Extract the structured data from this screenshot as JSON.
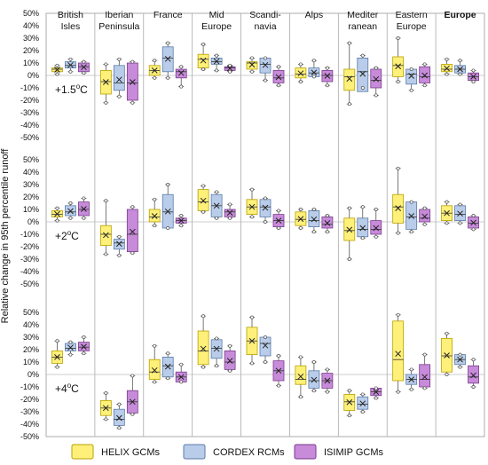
{
  "chart_data": {
    "type": "box",
    "ylabel": "Relative change in 95th percentile runoff",
    "y_ticks": [
      "50%",
      "40%",
      "30%",
      "20%",
      "10%",
      "0%",
      "-10%",
      "-20%",
      "-30%",
      "-40%",
      "-50%"
    ],
    "ylim": [
      -50,
      50
    ],
    "regions": [
      {
        "lines": [
          "British",
          "Isles"
        ],
        "bold": false
      },
      {
        "lines": [
          "Iberian",
          "Peninsula"
        ],
        "bold": false
      },
      {
        "lines": [
          "France"
        ],
        "bold": false
      },
      {
        "lines": [
          "Mid",
          "Europe"
        ],
        "bold": false
      },
      {
        "lines": [
          "Scandi-",
          "navia"
        ],
        "bold": false
      },
      {
        "lines": [
          "Alps"
        ],
        "bold": false
      },
      {
        "lines": [
          "Mediter",
          "ranean"
        ],
        "bold": false
      },
      {
        "lines": [
          "Eastern",
          "Europe"
        ],
        "bold": false
      },
      {
        "lines": [
          "Europe"
        ],
        "bold": true
      }
    ],
    "series": [
      {
        "name": "HELIX GCMs",
        "color": "#FFF07A",
        "stroke": "#B8A200"
      },
      {
        "name": "CORDEX RCMs",
        "color": "#B9CDEA",
        "stroke": "#5A7BA8"
      },
      {
        "name": "ISIMIP GCMs",
        "color": "#C78BD9",
        "stroke": "#7A3A8E"
      }
    ],
    "panels": [
      {
        "label_prefix": "+1.5",
        "label_sup": "o",
        "label_suffix": "C",
        "boxes": [
          [
            [
              1,
              3,
              5,
              6,
              8
            ],
            [
              3,
              6,
              8,
              11,
              13
            ],
            [
              2,
              3,
              7,
              10,
              11
            ]
          ],
          [
            [
              -22,
              -15,
              -5,
              4,
              9
            ],
            [
              -17,
              -12,
              -6,
              8,
              13
            ],
            [
              -22,
              -20,
              -6,
              10,
              11
            ]
          ],
          [
            [
              -2,
              0,
              4,
              8,
              12
            ],
            [
              -2,
              3,
              14,
              23,
              26
            ],
            [
              -9,
              -2,
              3,
              5,
              7
            ]
          ],
          [
            [
              5,
              6,
              13,
              17,
              25
            ],
            [
              4,
              9,
              11,
              14,
              16
            ],
            [
              3,
              4,
              6,
              7,
              8
            ]
          ],
          [
            [
              3,
              5,
              10,
              11,
              14
            ],
            [
              -4,
              2,
              9,
              14,
              14
            ],
            [
              -8,
              -6,
              -2,
              4,
              7
            ]
          ],
          [
            [
              -5,
              -2,
              1,
              6,
              9
            ],
            [
              -1,
              -1,
              2,
              6,
              12
            ],
            [
              -8,
              -5,
              0,
              4,
              6
            ]
          ],
          [
            [
              -23,
              -12,
              -1,
              5,
              26
            ],
            [
              -10,
              -13,
              3,
              14,
              16
            ],
            [
              -16,
              -10,
              -4,
              5,
              6
            ]
          ],
          [
            [
              -5,
              -1,
              8,
              15,
              30
            ],
            [
              -12,
              -7,
              1,
              5,
              5
            ],
            [
              -8,
              -6,
              -1,
              7,
              9
            ]
          ],
          [
            [
              1,
              3,
              5,
              9,
              13
            ],
            [
              1,
              2,
              5,
              8,
              12
            ],
            [
              -5,
              -4,
              -1,
              2,
              4
            ]
          ]
        ]
      },
      {
        "label_prefix": "+2",
        "label_sup": "o",
        "label_suffix": "C",
        "boxes": [
          [
            [
              1,
              4,
              6,
              9,
              11
            ],
            [
              3,
              5,
              8,
              13,
              15
            ],
            [
              3,
              5,
              10,
              16,
              19
            ]
          ],
          [
            [
              -26,
              -19,
              -10,
              -3,
              17
            ],
            [
              -27,
              -22,
              -17,
              -14,
              -12
            ],
            [
              -25,
              -24,
              -10,
              10,
              12
            ]
          ],
          [
            [
              -3,
              0,
              4,
              10,
              18
            ],
            [
              -5,
              -5,
              8,
              22,
              30
            ],
            [
              -3,
              -1,
              1,
              3,
              5
            ]
          ],
          [
            [
              8,
              9,
              16,
              26,
              29
            ],
            [
              3,
              4,
              13,
              22,
              24
            ],
            [
              3,
              4,
              8,
              10,
              14
            ]
          ],
          [
            [
              4,
              6,
              12,
              18,
              26
            ],
            [
              0,
              4,
              12,
              18,
              19
            ],
            [
              -5,
              -4,
              1,
              6,
              9
            ]
          ],
          [
            [
              -5,
              -3,
              2,
              8,
              10
            ],
            [
              -8,
              -4,
              1,
              9,
              10
            ],
            [
              -8,
              -5,
              -2,
              4,
              5
            ]
          ],
          [
            [
              -30,
              -15,
              -7,
              3,
              11
            ],
            [
              -13,
              -12,
              -6,
              3,
              12
            ],
            [
              -12,
              -10,
              -6,
              1,
              10
            ]
          ],
          [
            [
              -9,
              -1,
              12,
              22,
              43
            ],
            [
              -8,
              -6,
              4,
              16,
              16
            ],
            [
              -2,
              0,
              3,
              10,
              11
            ]
          ],
          [
            [
              -1,
              1,
              7,
              13,
              16
            ],
            [
              -1,
              1,
              6,
              13,
              14
            ],
            [
              -6,
              -5,
              -1,
              4,
              5
            ]
          ]
        ]
      },
      {
        "label_prefix": "+4",
        "label_sup": "o",
        "label_suffix": "C",
        "boxes": [
          [
            [
              6,
              9,
              14,
              19,
              27
            ],
            [
              16,
              19,
              21,
              25,
              26
            ],
            [
              17,
              19,
              22,
              26,
              30
            ]
          ],
          [
            [
              -36,
              -33,
              -27,
              -21,
              -15
            ],
            [
              -43,
              -41,
              -36,
              -28,
              -24
            ],
            [
              -32,
              -31,
              -22,
              -13,
              -1
            ]
          ],
          [
            [
              -6,
              -4,
              2,
              12,
              23
            ],
            [
              -3,
              -2,
              7,
              14,
              17
            ],
            [
              -6,
              -6,
              -2,
              2,
              8
            ]
          ],
          [
            [
              6,
              8,
              19,
              35,
              47
            ],
            [
              7,
              13,
              21,
              28,
              29
            ],
            [
              3,
              4,
              10,
              19,
              23
            ]
          ],
          [
            [
              9,
              16,
              27,
              38,
              46
            ],
            [
              10,
              15,
              25,
              30,
              30
            ],
            [
              -9,
              -5,
              3,
              11,
              15
            ]
          ],
          [
            [
              -18,
              -8,
              -4,
              7,
              14
            ],
            [
              -13,
              -11,
              -5,
              3,
              10
            ],
            [
              -14,
              -11,
              -5,
              1,
              4
            ]
          ],
          [
            [
              -33,
              -29,
              -22,
              -16,
              -13
            ],
            [
              -30,
              -28,
              -24,
              -18,
              -16
            ],
            [
              -19,
              -17,
              -14,
              -11,
              -11
            ]
          ],
          [
            [
              -14,
              -5,
              12,
              43,
              48
            ],
            [
              -12,
              -8,
              -4,
              0,
              4
            ],
            [
              -11,
              -10,
              -4,
              8,
              16
            ]
          ],
          [
            [
              0,
              2,
              15,
              29,
              33
            ],
            [
              6,
              8,
              12,
              16,
              16
            ],
            [
              -10,
              -7,
              -2,
              7,
              12
            ]
          ]
        ]
      }
    ]
  }
}
